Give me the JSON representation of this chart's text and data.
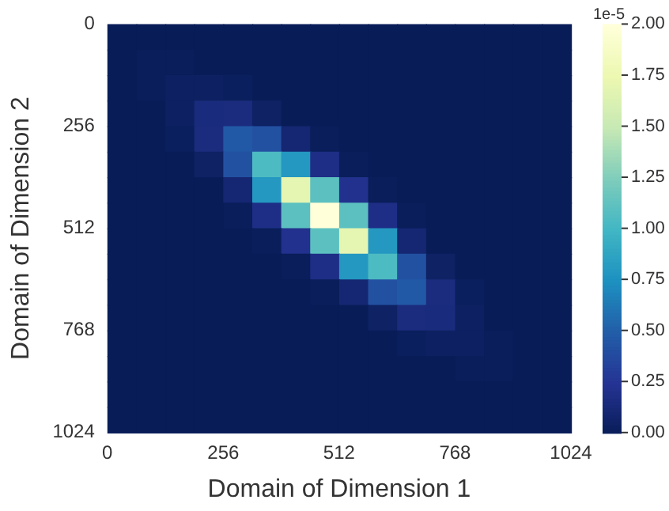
{
  "chart_data": {
    "type": "heatmap",
    "xlabel": "Domain of Dimension 1",
    "ylabel": "Domain of Dimension 2",
    "clabel": "1e-5",
    "xlim": [
      0,
      1024
    ],
    "xticks": [
      0,
      256,
      512,
      768,
      1024
    ],
    "ylim": [
      1024,
      0
    ],
    "yticks": [
      0,
      256,
      512,
      768,
      1024
    ],
    "clim": [
      0,
      2
    ],
    "cticks": [
      {
        "value": 0,
        "label": "0.00"
      },
      {
        "value": 0.25,
        "label": "0.25"
      },
      {
        "value": 0.5,
        "label": "0.50"
      },
      {
        "value": 0.75,
        "label": "0.75"
      },
      {
        "value": 1,
        "label": "1.00"
      },
      {
        "value": 1.25,
        "label": "1.25"
      },
      {
        "value": 1.5,
        "label": "1.50"
      },
      {
        "value": 1.75,
        "label": "1.75"
      },
      {
        "value": 2,
        "label": "2.00"
      }
    ],
    "grid": false,
    "cells": [
      [
        0,
        0,
        0,
        0,
        0,
        0,
        0,
        0,
        0,
        0,
        0,
        0,
        0,
        0,
        0,
        0
      ],
      [
        0,
        0.01,
        0.01,
        0,
        0,
        0,
        0,
        0,
        0,
        0,
        0,
        0,
        0,
        0,
        0,
        0
      ],
      [
        0,
        0.01,
        0.04,
        0.04,
        0.02,
        0,
        0,
        0,
        0,
        0,
        0,
        0,
        0,
        0,
        0,
        0
      ],
      [
        0,
        0,
        0.04,
        0.15,
        0.16,
        0.05,
        0,
        0,
        0,
        0,
        0,
        0,
        0,
        0,
        0,
        0
      ],
      [
        0,
        0,
        0.02,
        0.16,
        0.47,
        0.42,
        0.11,
        0.01,
        0,
        0,
        0,
        0,
        0,
        0,
        0,
        0
      ],
      [
        0,
        0,
        0,
        0.05,
        0.42,
        1.05,
        0.8,
        0.19,
        0.01,
        0,
        0,
        0,
        0,
        0,
        0,
        0
      ],
      [
        0,
        0,
        0,
        0,
        0.11,
        0.8,
        1.7,
        1.11,
        0.22,
        0.01,
        0,
        0,
        0,
        0,
        0,
        0
      ],
      [
        0,
        0,
        0,
        0,
        0.01,
        0.19,
        1.11,
        2,
        1.11,
        0.19,
        0.01,
        0,
        0,
        0,
        0,
        0
      ],
      [
        0,
        0,
        0,
        0,
        0,
        0.01,
        0.22,
        1.11,
        1.7,
        0.8,
        0.11,
        0,
        0,
        0,
        0,
        0
      ],
      [
        0,
        0,
        0,
        0,
        0,
        0,
        0.01,
        0.19,
        0.8,
        1.05,
        0.42,
        0.05,
        0,
        0,
        0,
        0
      ],
      [
        0,
        0,
        0,
        0,
        0,
        0,
        0,
        0.01,
        0.11,
        0.42,
        0.47,
        0.16,
        0.02,
        0,
        0,
        0
      ],
      [
        0,
        0,
        0,
        0,
        0,
        0,
        0,
        0,
        0,
        0.05,
        0.16,
        0.15,
        0.04,
        0,
        0,
        0
      ],
      [
        0,
        0,
        0,
        0,
        0,
        0,
        0,
        0,
        0,
        0,
        0.02,
        0.04,
        0.04,
        0.01,
        0,
        0
      ],
      [
        0,
        0,
        0,
        0,
        0,
        0,
        0,
        0,
        0,
        0,
        0,
        0,
        0.01,
        0.01,
        0,
        0
      ],
      [
        0,
        0,
        0,
        0,
        0,
        0,
        0,
        0,
        0,
        0,
        0,
        0,
        0,
        0,
        0,
        0
      ],
      [
        0,
        0,
        0,
        0,
        0,
        0,
        0,
        0,
        0,
        0,
        0,
        0,
        0,
        0,
        0,
        0
      ]
    ]
  }
}
